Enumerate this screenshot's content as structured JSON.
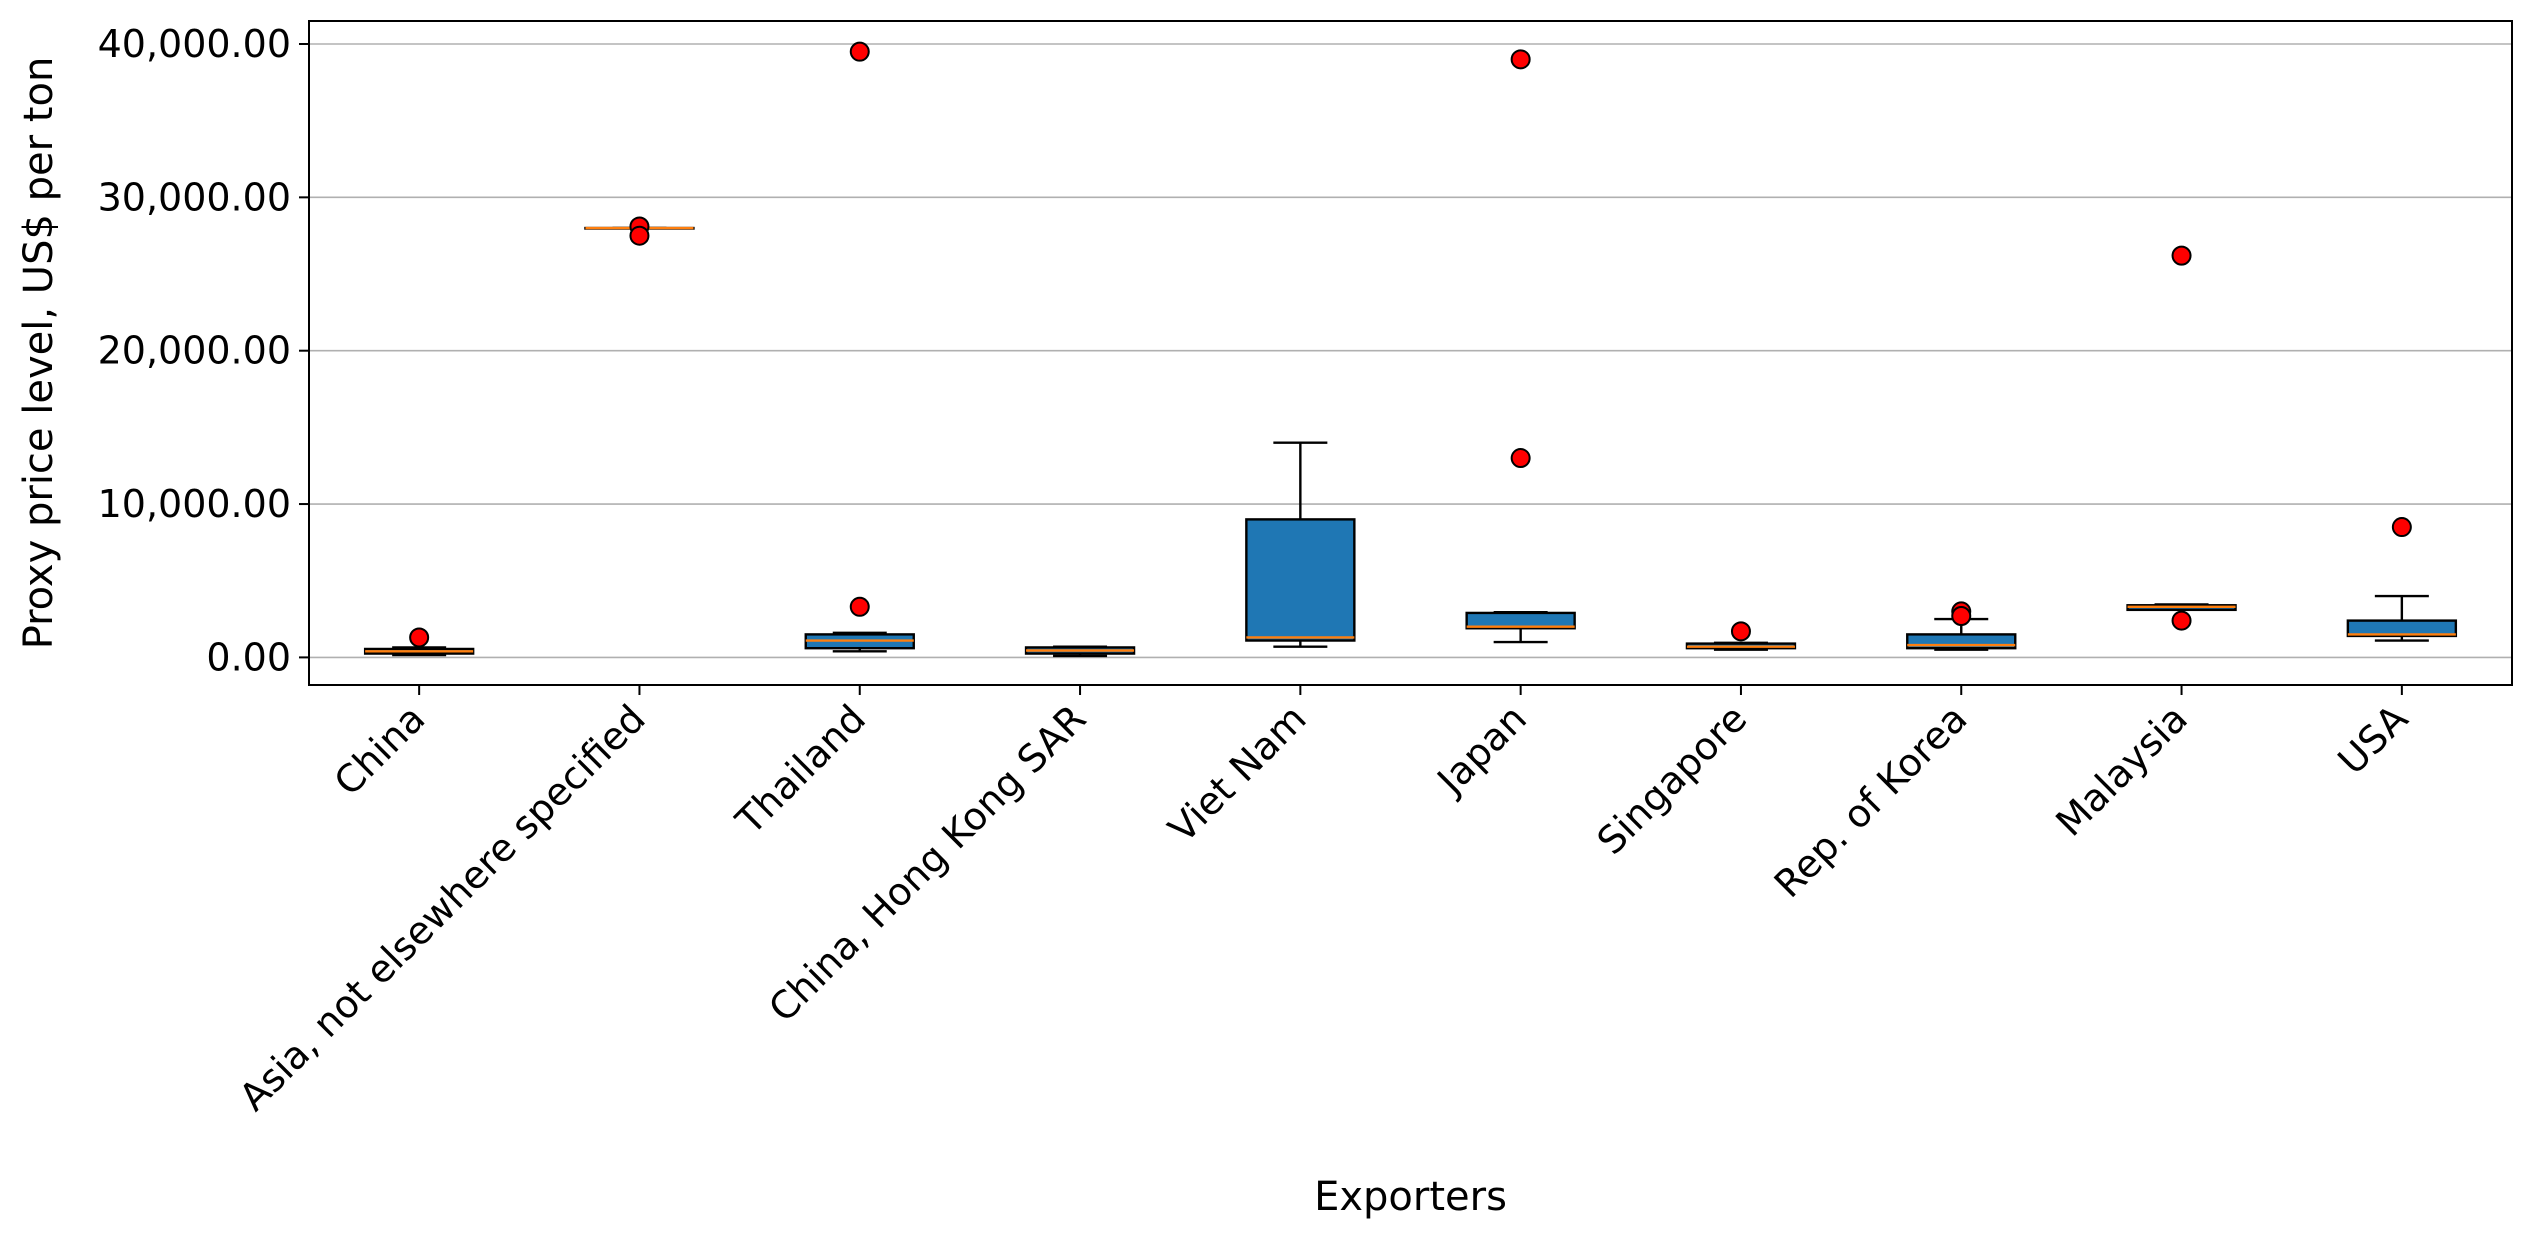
{
  "chart_data": {
    "type": "box",
    "title": "",
    "xlabel": "Exporters",
    "ylabel": "Proxy price level, US$ per ton",
    "ylim": [
      -1800,
      41500
    ],
    "yticks": [
      0,
      10000,
      20000,
      30000,
      40000
    ],
    "ytick_labels": [
      "0.00",
      "10,000.00",
      "20,000.00",
      "30,000.00",
      "40,000.00"
    ],
    "grid": "horizontal",
    "legend": "none",
    "colors": {
      "box_fill": "#1f77b4",
      "median": "#ff7f0e",
      "outlier_fill": "#ff0000",
      "outline": "#000000",
      "grid": "#b0b0b0"
    },
    "categories": [
      "China",
      "Asia, not elsewhere specified",
      "Thailand",
      "China, Hong Kong SAR",
      "Viet Nam",
      "Japan",
      "Singapore",
      "Rep. of Korea",
      "Malaysia",
      "USA"
    ],
    "boxes": [
      {
        "category": "China",
        "whisker_low": 150,
        "q1": 250,
        "median": 400,
        "q3": 550,
        "whisker_high": 650,
        "outliers": [
          1300
        ]
      },
      {
        "category": "Asia, not elsewhere specified",
        "whisker_low": 28000,
        "q1": 28000,
        "median": 28000,
        "q3": 28000,
        "whisker_high": 28000,
        "outliers": [
          28100,
          27500
        ]
      },
      {
        "category": "Thailand",
        "whisker_low": 400,
        "q1": 600,
        "median": 1100,
        "q3": 1500,
        "whisker_high": 1600,
        "outliers": [
          39500,
          3300
        ]
      },
      {
        "category": "China, Hong Kong SAR",
        "whisker_low": 100,
        "q1": 250,
        "median": 450,
        "q3": 650,
        "whisker_high": 700,
        "outliers": []
      },
      {
        "category": "Viet Nam",
        "whisker_low": 700,
        "q1": 1100,
        "median": 1300,
        "q3": 9000,
        "whisker_high": 14000,
        "outliers": []
      },
      {
        "category": "Japan",
        "whisker_low": 1000,
        "q1": 1900,
        "median": 2000,
        "q3": 2900,
        "whisker_high": 2950,
        "outliers": [
          39000,
          13000
        ]
      },
      {
        "category": "Singapore",
        "whisker_low": 500,
        "q1": 600,
        "median": 700,
        "q3": 900,
        "whisker_high": 950,
        "outliers": [
          1700
        ]
      },
      {
        "category": "Rep. of Korea",
        "whisker_low": 500,
        "q1": 600,
        "median": 800,
        "q3": 1500,
        "whisker_high": 2500,
        "outliers": [
          3000,
          2700
        ]
      },
      {
        "category": "Malaysia",
        "whisker_low": 3100,
        "q1": 3100,
        "median": 3300,
        "q3": 3400,
        "whisker_high": 3450,
        "outliers": [
          26200,
          2400
        ]
      },
      {
        "category": "USA",
        "whisker_low": 1100,
        "q1": 1400,
        "median": 1500,
        "q3": 2400,
        "whisker_high": 4000,
        "outliers": [
          8500
        ]
      }
    ]
  }
}
